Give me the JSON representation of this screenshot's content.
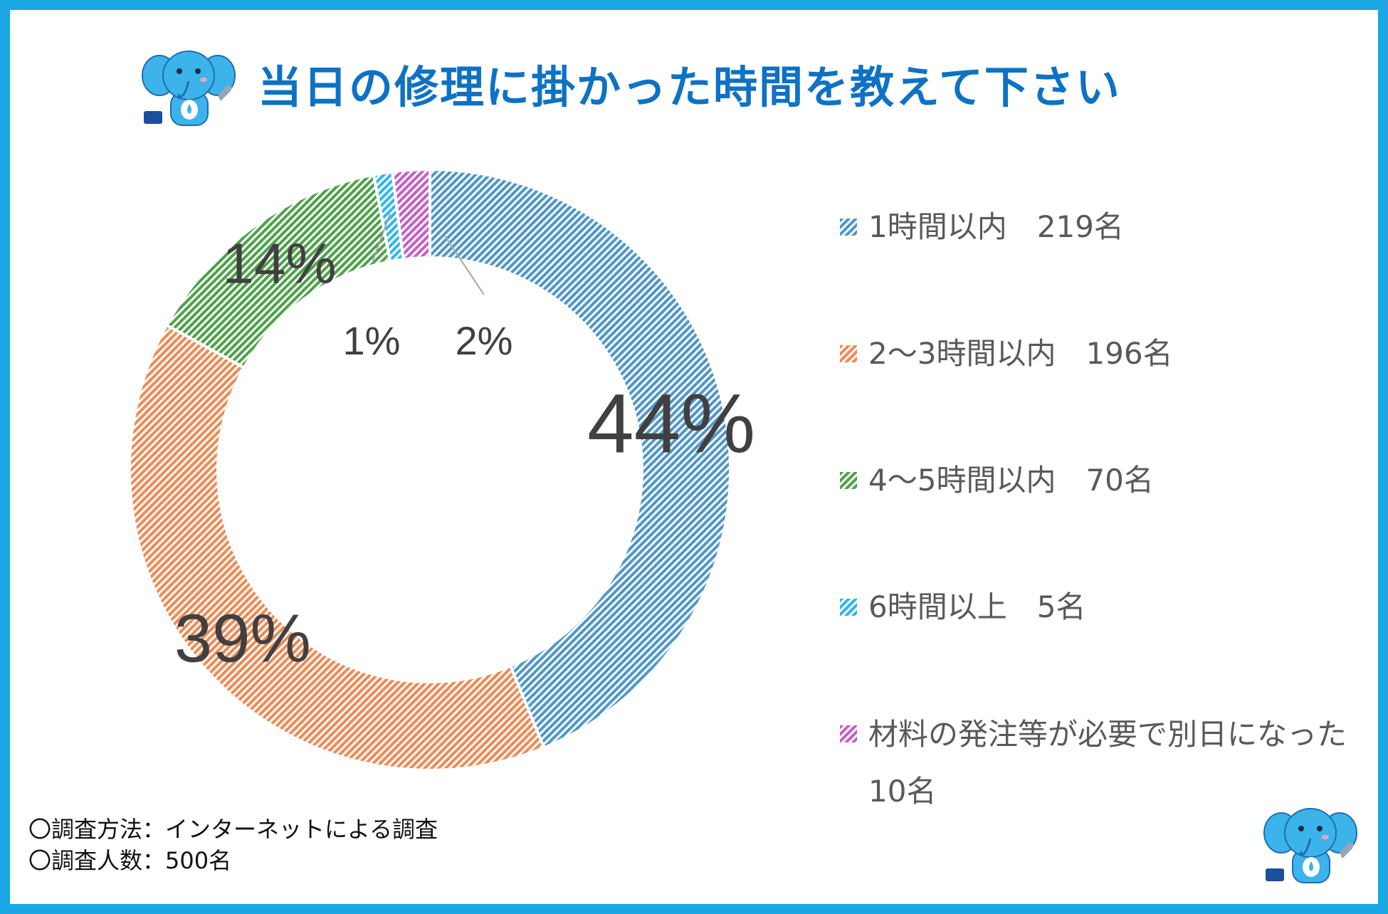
{
  "title": "当日の修理に掛かった時間を教えて下さい",
  "chart_data": {
    "type": "pie",
    "variant": "donut",
    "title": "当日の修理に掛かった時間を教えて下さい",
    "slices": [
      {
        "name": "1時間以内",
        "count_label": "219名",
        "value": 219,
        "percent_label": "44%",
        "color": "#4f97c8"
      },
      {
        "name": "2～3時間以内",
        "count_label": "196名",
        "value": 196,
        "percent_label": "39%",
        "color": "#ee8a54"
      },
      {
        "name": "4～5時間以内",
        "count_label": "70名",
        "value": 70,
        "percent_label": "14%",
        "color": "#4ea24a"
      },
      {
        "name": "6時間以上",
        "count_label": "5名",
        "value": 5,
        "percent_label": "1%",
        "color": "#2fb7ea"
      },
      {
        "name": "材料の発注等が必要で別日になった",
        "count_label": "10名",
        "value": 10,
        "percent_label": "2%",
        "color": "#c55fc6"
      }
    ],
    "legend_position": "right"
  },
  "legend": [
    {
      "label": "1時間以内　219名"
    },
    {
      "label": "2～3時間以内　196名"
    },
    {
      "label": "4～5時間以内　70名"
    },
    {
      "label": "6時間以上　5名"
    },
    {
      "label": "材料の発注等が必要で別日になった　10名"
    }
  ],
  "notes": {
    "method": "〇調査方法：インターネットによる調査",
    "respondents": "〇調査人数：500名"
  },
  "colors": {
    "frame": "#1aa7e3",
    "title": "#0e72c4",
    "mascot": "#3db3ec"
  },
  "icons": {
    "mascot": "elephant-mascot-icon"
  }
}
